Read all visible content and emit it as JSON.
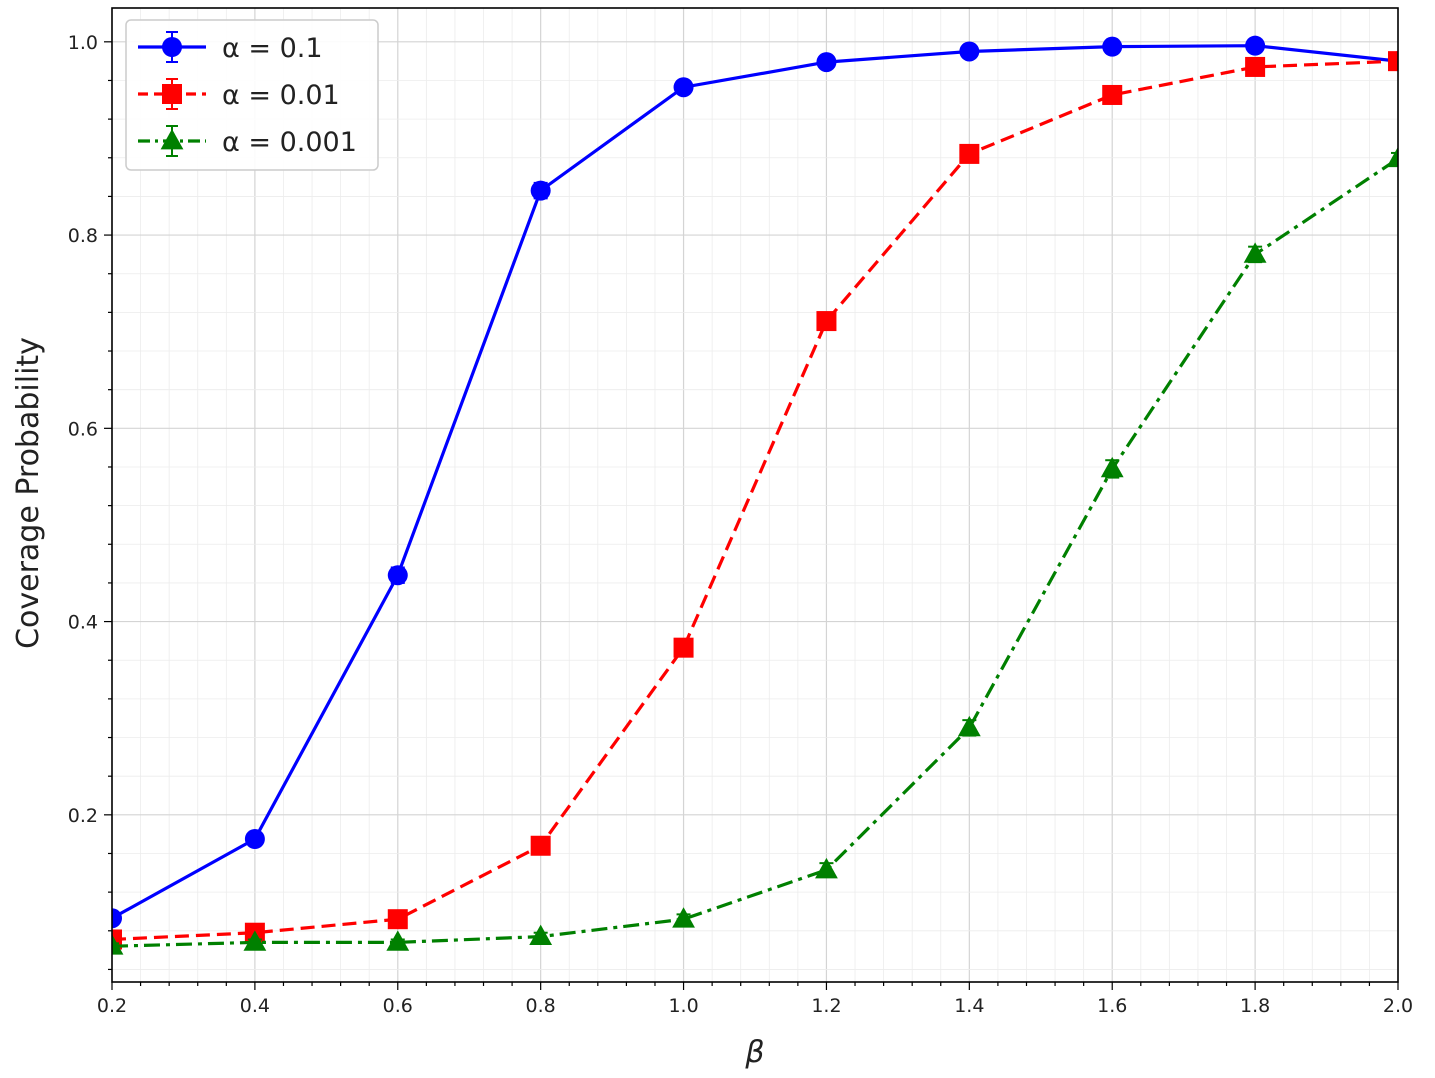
{
  "chart_data": {
    "type": "line",
    "title": "",
    "xlabel": "β",
    "ylabel": "Coverage Probability",
    "x": [
      0.2,
      0.4,
      0.6,
      0.8,
      1.0,
      1.2,
      1.4,
      1.6,
      1.8,
      2.0
    ],
    "xlim": [
      0.2,
      2.0
    ],
    "ylim": [
      0.027,
      1.035
    ],
    "x_ticks": [
      "0.2",
      "0.4",
      "0.6",
      "0.8",
      "1.0",
      "1.2",
      "1.4",
      "1.6",
      "1.8",
      "2.0"
    ],
    "y_ticks": [
      "0.2",
      "0.4",
      "0.6",
      "0.8",
      "1.0"
    ],
    "grid": true,
    "minor_grid": true,
    "legend_position": "top-left",
    "series": [
      {
        "name": "α = 0.1",
        "color": "#0000ff",
        "marker": "circle",
        "linestyle": "solid",
        "values": [
          0.093,
          0.175,
          0.448,
          0.846,
          0.953,
          0.979,
          0.99,
          0.995,
          0.996,
          0.98
        ],
        "errors": [
          0.004,
          0.005,
          0.008,
          0.008,
          0.004,
          0.003,
          0.002,
          0.002,
          0.002,
          0.003
        ]
      },
      {
        "name": "α = 0.01",
        "color": "#ff0000",
        "marker": "square",
        "linestyle": "dashed",
        "values": [
          0.071,
          0.078,
          0.092,
          0.168,
          0.373,
          0.711,
          0.884,
          0.945,
          0.974,
          0.98
        ],
        "errors": [
          0.003,
          0.003,
          0.004,
          0.005,
          0.008,
          0.008,
          0.005,
          0.004,
          0.003,
          0.003
        ]
      },
      {
        "name": "α = 0.001",
        "color": "#008000",
        "marker": "triangle",
        "linestyle": "dashdot",
        "values": [
          0.064,
          0.068,
          0.068,
          0.074,
          0.092,
          0.143,
          0.29,
          0.558,
          0.78,
          0.879
        ],
        "errors": [
          0.003,
          0.003,
          0.003,
          0.004,
          0.005,
          0.007,
          0.008,
          0.009,
          0.008,
          0.006
        ]
      }
    ]
  }
}
